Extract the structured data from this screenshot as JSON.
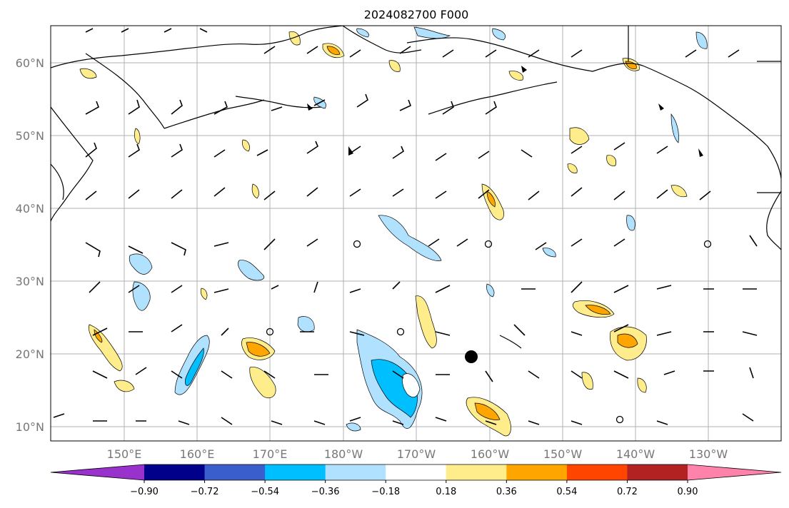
{
  "title": "2024082700 F000",
  "lat_labels": [
    "10°N",
    "20°N",
    "30°N",
    "40°N",
    "50°N",
    "60°N"
  ],
  "lon_labels": [
    "150°E",
    "160°E",
    "170°E",
    "180°W",
    "170°W",
    "160°W",
    "150°W",
    "140°W",
    "130°W"
  ],
  "colorbar": {
    "tick_labels": [
      "−0.90",
      "−0.72",
      "−0.54",
      "−0.36",
      "−0.18",
      "0.18",
      "0.36",
      "0.54",
      "0.72",
      "0.90"
    ],
    "colors": [
      "#9932cc",
      "#00008b",
      "#3a5fcd",
      "#00bfff",
      "#b0e2ff",
      "#ffffff",
      "#ffec8b",
      "#ffa500",
      "#ff4500",
      "#b22222",
      "#ff82ab"
    ]
  },
  "marker": {
    "label": ""
  }
}
